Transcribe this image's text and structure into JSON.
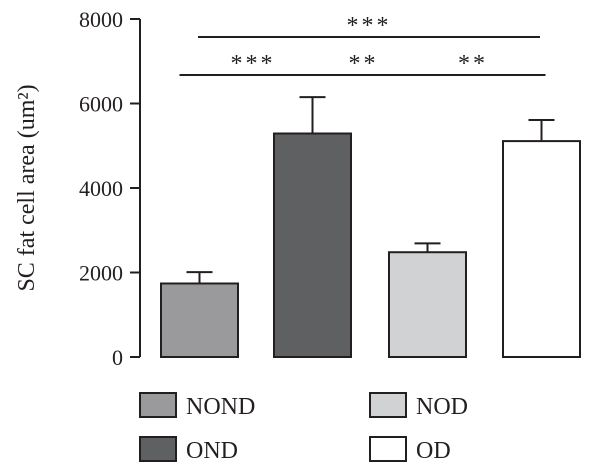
{
  "chart_data": {
    "type": "bar",
    "categories": [
      "NOND",
      "OND",
      "NOD",
      "OD"
    ],
    "values": [
      1740,
      5290,
      2480,
      5110
    ],
    "errors": [
      270,
      860,
      210,
      500
    ],
    "colors": [
      "#9a9a9c",
      "#5f6062",
      "#d1d2d4",
      "#ffffff"
    ],
    "ylabel": "SC fat cell area (um²)",
    "ylim": [
      0,
      8000
    ],
    "yticks": [
      0,
      2000,
      4000,
      6000,
      8000
    ],
    "ytick_labels": [
      "0",
      "2000",
      "4000",
      "6000",
      "8000"
    ],
    "legend": [
      {
        "label": "NOND",
        "color": "#9a9a9c"
      },
      {
        "label": "NOD",
        "color": "#d1d2d4"
      },
      {
        "label": "OND",
        "color": "#5f6062"
      },
      {
        "label": "OD",
        "color": "#ffffff"
      }
    ],
    "legend_position": "bottom",
    "significance": [
      {
        "from": 0,
        "to": 3,
        "label": "***",
        "level": 2
      },
      {
        "from": 0,
        "to": 1,
        "label": "***",
        "level": 1
      },
      {
        "from": 1,
        "to": 2,
        "label": "**",
        "level": 1
      },
      {
        "from": 2,
        "to": 3,
        "label": "**",
        "level": 1
      }
    ]
  }
}
